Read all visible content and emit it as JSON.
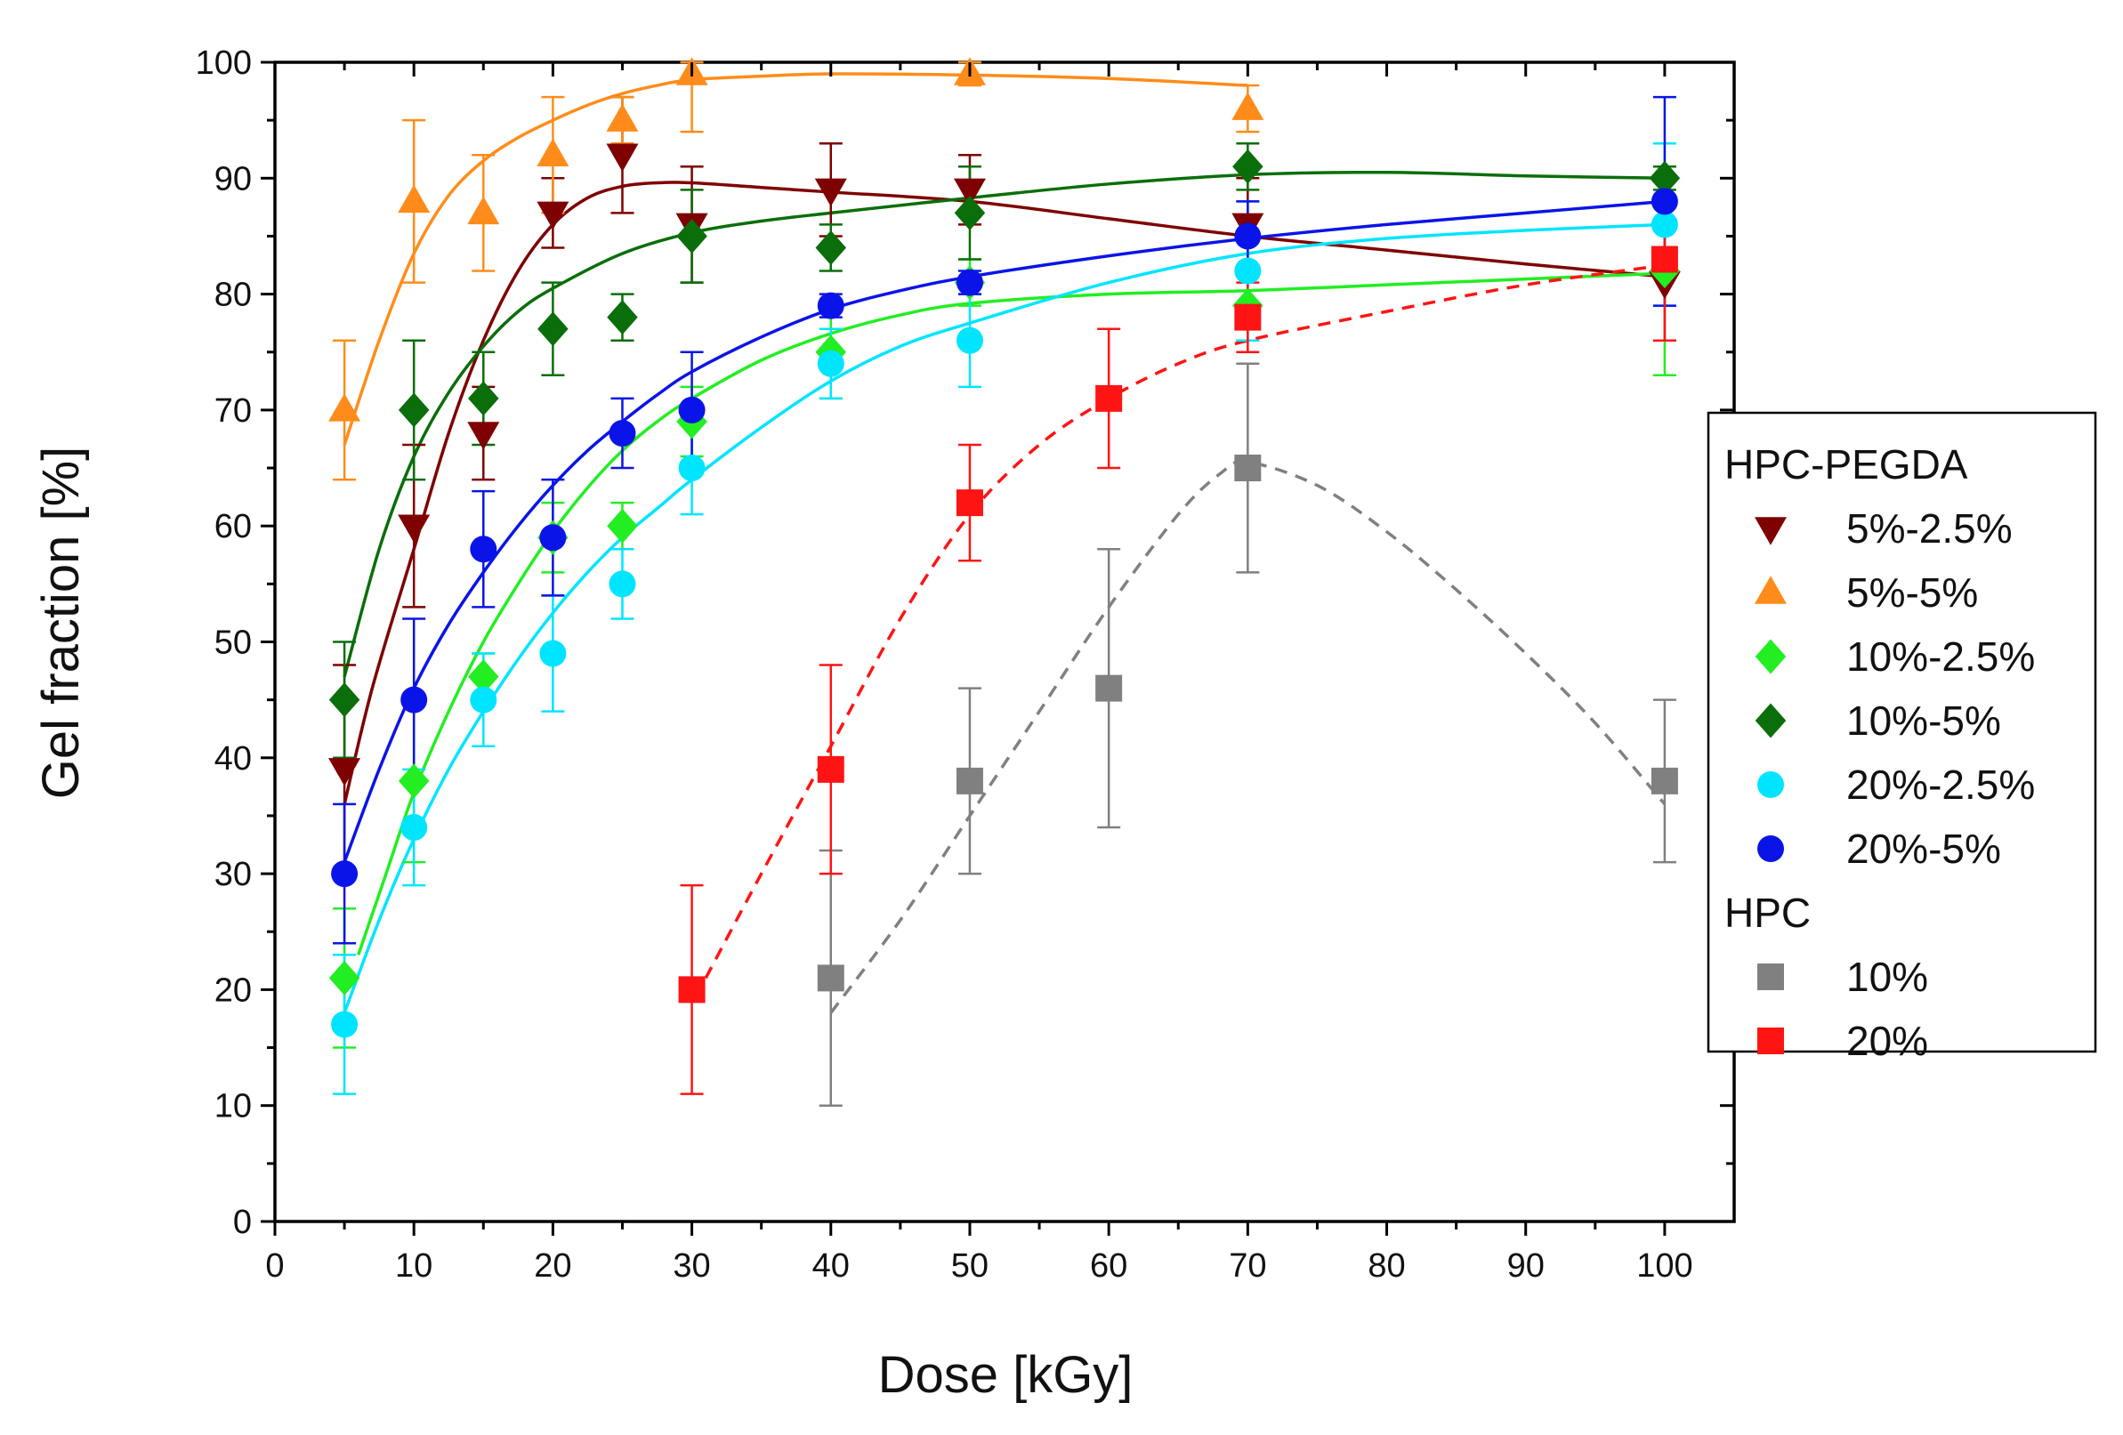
{
  "chart_data": {
    "type": "scatter",
    "title": "",
    "xlabel": "Dose [kGy]",
    "ylabel": "Gel fraction [%]",
    "xlim": [
      0,
      105
    ],
    "ylim": [
      0,
      100
    ],
    "x_ticks": [
      "0",
      "10",
      "20",
      "30",
      "40",
      "50",
      "60",
      "70",
      "80",
      "90",
      "100"
    ],
    "y_ticks": [
      "0",
      "10",
      "20",
      "30",
      "40",
      "50",
      "60",
      "70",
      "80",
      "90",
      "100"
    ],
    "grid": false,
    "legend_position": "right",
    "legend_groups": [
      "HPC-PEGDA",
      "HPC"
    ],
    "series": [
      {
        "name": "5%-2.5%",
        "group": "HPC-PEGDA",
        "marker": "triangle-down",
        "color": "#7f0000",
        "x": [
          5,
          10,
          15,
          20,
          25,
          30,
          40,
          50,
          70,
          100
        ],
        "y": [
          39,
          60,
          68,
          87,
          92,
          86,
          89,
          89,
          86,
          81
        ],
        "err": [
          9,
          7,
          4,
          3,
          5,
          5,
          4,
          3,
          4,
          5
        ],
        "fit": {
          "style": "solid",
          "points": [
            [
              5,
              36
            ],
            [
              7,
              46
            ],
            [
              10,
              58
            ],
            [
              12.5,
              68
            ],
            [
              15,
              76
            ],
            [
              17.5,
              82
            ],
            [
              20,
              86
            ],
            [
              22.5,
              88.3
            ],
            [
              25,
              89.3
            ],
            [
              27.5,
              89.6
            ],
            [
              30,
              89.6
            ],
            [
              35,
              89.2
            ],
            [
              40,
              88.8
            ],
            [
              50,
              88
            ],
            [
              60,
              86.5
            ],
            [
              70,
              85
            ],
            [
              80,
              83.8
            ],
            [
              90,
              82.6
            ],
            [
              100,
              81.5
            ]
          ]
        }
      },
      {
        "name": "5%-5%",
        "group": "HPC-PEGDA",
        "marker": "triangle-up",
        "color": "#ff8c1a",
        "x": [
          5,
          10,
          15,
          20,
          25,
          30,
          50,
          70
        ],
        "y": [
          70,
          88,
          87,
          92,
          95,
          99,
          99,
          96
        ],
        "err": [
          6,
          7,
          5,
          5,
          2,
          5,
          1,
          2
        ],
        "fit": {
          "style": "solid",
          "points": [
            [
              5,
              67
            ],
            [
              7.5,
              76
            ],
            [
              10,
              83.5
            ],
            [
              12.5,
              88.5
            ],
            [
              15,
              91.5
            ],
            [
              17.5,
              93.5
            ],
            [
              20,
              95
            ],
            [
              22.5,
              96.3
            ],
            [
              25,
              97.3
            ],
            [
              27.5,
              98
            ],
            [
              30,
              98.5
            ],
            [
              35,
              98.8
            ],
            [
              40,
              99
            ],
            [
              50,
              98.9
            ],
            [
              60,
              98.6
            ],
            [
              70,
              98
            ]
          ]
        }
      },
      {
        "name": "10%-2.5%",
        "group": "HPC-PEGDA",
        "marker": "diamond",
        "color": "#22ee22",
        "x": [
          5,
          10,
          15,
          20,
          25,
          30,
          40,
          50,
          70,
          100
        ],
        "y": [
          21,
          38,
          47,
          59,
          60,
          69,
          75,
          81,
          79,
          82
        ],
        "err": [
          6,
          7,
          2,
          3,
          2,
          3,
          4,
          2,
          3,
          9
        ],
        "fit": {
          "style": "solid",
          "points": [
            [
              6,
              23
            ],
            [
              8,
              30
            ],
            [
              10,
              37
            ],
            [
              12.5,
              44
            ],
            [
              15,
              50
            ],
            [
              17.5,
              55
            ],
            [
              20,
              59.5
            ],
            [
              22.5,
              63.3
            ],
            [
              25,
              66.5
            ],
            [
              27.5,
              69
            ],
            [
              30,
              71
            ],
            [
              35,
              74.3
            ],
            [
              40,
              76.6
            ],
            [
              45,
              78.2
            ],
            [
              50,
              79.2
            ],
            [
              60,
              80
            ],
            [
              70,
              80.3
            ],
            [
              80,
              80.8
            ],
            [
              90,
              81.3
            ],
            [
              100,
              81.8
            ]
          ]
        }
      },
      {
        "name": "10%-5%",
        "group": "HPC-PEGDA",
        "marker": "diamond",
        "color": "#0a6e0a",
        "x": [
          5,
          10,
          15,
          20,
          25,
          30,
          40,
          50,
          70,
          100
        ],
        "y": [
          45,
          70,
          71,
          77,
          78,
          85,
          84,
          87,
          91,
          90
        ],
        "err": [
          5,
          6,
          4,
          4,
          2,
          4,
          2,
          4,
          2,
          1
        ],
        "fit": {
          "style": "solid",
          "points": [
            [
              5,
              47
            ],
            [
              7.5,
              58
            ],
            [
              10,
              66
            ],
            [
              12.5,
              71.5
            ],
            [
              15,
              75.5
            ],
            [
              17.5,
              78.5
            ],
            [
              20,
              80.5
            ],
            [
              25,
              83.5
            ],
            [
              30,
              85.3
            ],
            [
              35,
              86.3
            ],
            [
              40,
              87
            ],
            [
              50,
              88.3
            ],
            [
              60,
              89.5
            ],
            [
              70,
              90.3
            ],
            [
              80,
              90.5
            ],
            [
              90,
              90.2
            ],
            [
              100,
              90
            ]
          ]
        }
      },
      {
        "name": "20%-2.5%",
        "group": "HPC-PEGDA",
        "marker": "circle",
        "color": "#00e5ff",
        "x": [
          5,
          10,
          15,
          20,
          25,
          30,
          40,
          50,
          70,
          100
        ],
        "y": [
          17,
          34,
          45,
          49,
          55,
          65,
          74,
          76,
          82,
          86
        ],
        "err": [
          6,
          5,
          4,
          5,
          3,
          4,
          3,
          4,
          6,
          7
        ],
        "fit": {
          "style": "solid",
          "points": [
            [
              5,
              18
            ],
            [
              7.5,
              26
            ],
            [
              10,
              33
            ],
            [
              12.5,
              39
            ],
            [
              15,
              44
            ],
            [
              17.5,
              48.5
            ],
            [
              20,
              52.5
            ],
            [
              22.5,
              56
            ],
            [
              25,
              59
            ],
            [
              27.5,
              61.5
            ],
            [
              30,
              64
            ],
            [
              35,
              68.5
            ],
            [
              40,
              72.5
            ],
            [
              45,
              75.5
            ],
            [
              50,
              77.5
            ],
            [
              60,
              81
            ],
            [
              70,
              83.5
            ],
            [
              80,
              84.8
            ],
            [
              90,
              85.5
            ],
            [
              100,
              86
            ]
          ]
        }
      },
      {
        "name": "20%-5%",
        "group": "HPC-PEGDA",
        "marker": "circle",
        "color": "#0a14e8",
        "x": [
          5,
          10,
          15,
          20,
          25,
          30,
          40,
          50,
          70,
          100
        ],
        "y": [
          30,
          45,
          58,
          59,
          68,
          70,
          79,
          81,
          85,
          88
        ],
        "err": [
          6,
          7,
          5,
          5,
          3,
          5,
          1,
          1,
          3,
          9
        ],
        "fit": {
          "style": "solid",
          "points": [
            [
              5,
              31
            ],
            [
              7.5,
              39
            ],
            [
              10,
              46
            ],
            [
              12.5,
              51.5
            ],
            [
              15,
              56
            ],
            [
              17.5,
              60
            ],
            [
              20,
              63.5
            ],
            [
              22.5,
              66.5
            ],
            [
              25,
              69
            ],
            [
              27.5,
              71.3
            ],
            [
              30,
              73.3
            ],
            [
              35,
              76.3
            ],
            [
              40,
              78.7
            ],
            [
              45,
              80.3
            ],
            [
              50,
              81.5
            ],
            [
              60,
              83.3
            ],
            [
              70,
              84.8
            ],
            [
              80,
              86
            ],
            [
              90,
              87
            ],
            [
              100,
              88
            ]
          ]
        }
      },
      {
        "name": "10%",
        "group": "HPC",
        "marker": "square",
        "color": "#808080",
        "x": [
          40,
          50,
          60,
          70,
          100
        ],
        "y": [
          21,
          38,
          46,
          65,
          38
        ],
        "err": [
          11,
          8,
          12,
          9,
          7
        ],
        "fit": {
          "style": "dashed",
          "points": [
            [
              40,
              18
            ],
            [
              45,
              26
            ],
            [
              50,
              35
            ],
            [
              55,
              44
            ],
            [
              60,
              53
            ],
            [
              65,
              61
            ],
            [
              68,
              64.5
            ],
            [
              70,
              65.5
            ],
            [
              75,
              63.5
            ],
            [
              80,
              59.5
            ],
            [
              85,
              54.5
            ],
            [
              90,
              49
            ],
            [
              95,
              43
            ],
            [
              100,
              36
            ]
          ]
        }
      },
      {
        "name": "20%",
        "group": "HPC",
        "marker": "square",
        "color": "#ff1414",
        "x": [
          30,
          40,
          50,
          60,
          70,
          100
        ],
        "y": [
          20,
          39,
          62,
          71,
          78,
          83
        ],
        "err": [
          9,
          9,
          5,
          6,
          3,
          7
        ],
        "fit": {
          "style": "dashed",
          "points": [
            [
              31,
              21
            ],
            [
              35,
              30
            ],
            [
              40,
              41
            ],
            [
              45,
              52
            ],
            [
              50,
              61
            ],
            [
              55,
              67
            ],
            [
              60,
              71
            ],
            [
              65,
              74
            ],
            [
              70,
              76
            ],
            [
              80,
              78.5
            ],
            [
              90,
              80.8
            ],
            [
              100,
              82.5
            ]
          ]
        }
      }
    ]
  }
}
